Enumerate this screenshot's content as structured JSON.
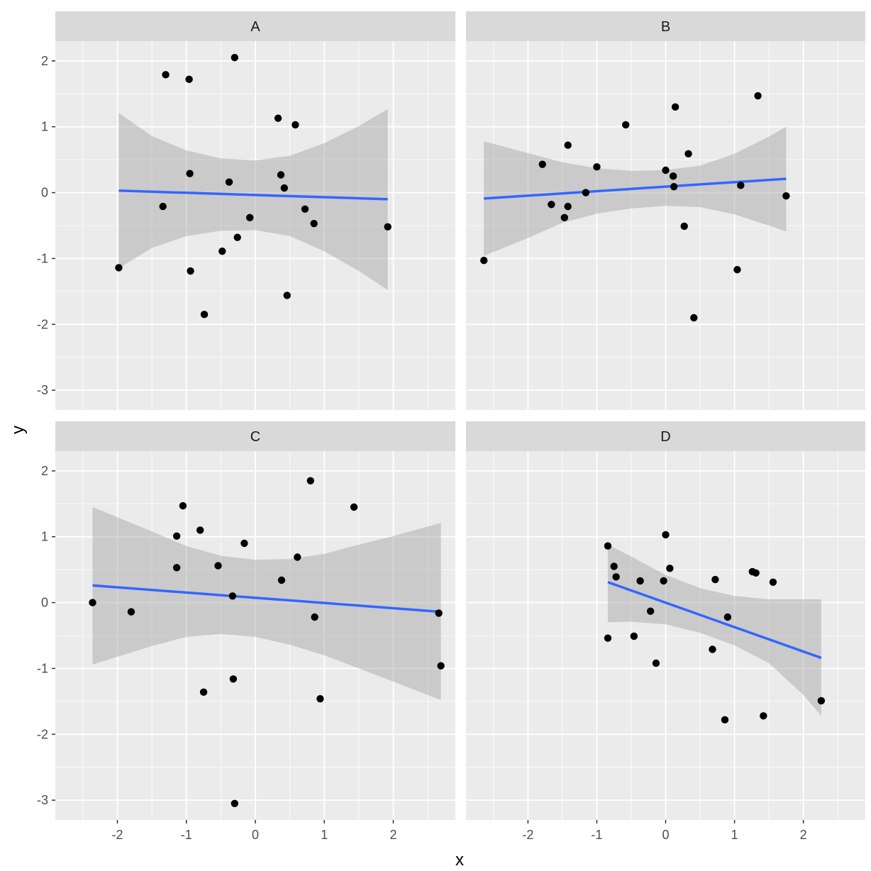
{
  "chart_data": {
    "type": "scatter",
    "xlabel": "x",
    "ylabel": "y",
    "xlim": [
      -2.9,
      2.9
    ],
    "ylim": [
      -3.3,
      2.3
    ],
    "x_ticks": [
      -2,
      -1,
      0,
      1,
      2
    ],
    "y_ticks": [
      -3,
      -2,
      -1,
      0,
      1,
      2
    ],
    "x_tick_labels": [
      "-2",
      "-1",
      "0",
      "1",
      "2"
    ],
    "y_tick_labels": [
      "-3",
      "-2",
      "-1",
      "0",
      "1",
      "2"
    ],
    "grid": true,
    "colors": {
      "panel_bg": "#ebebeb",
      "strip_bg": "#d9d9d9",
      "grid": "#ffffff",
      "point": "#000000",
      "fit_line": "#3366ff",
      "ribbon": "#999999"
    },
    "facets": [
      {
        "label": "A",
        "points": [
          [
            -1.98,
            -1.14
          ],
          [
            -1.3,
            1.79
          ],
          [
            -1.34,
            -0.21
          ],
          [
            -0.96,
            1.72
          ],
          [
            -0.95,
            0.29
          ],
          [
            -0.94,
            -1.19
          ],
          [
            -0.74,
            -1.85
          ],
          [
            -0.48,
            -0.89
          ],
          [
            -0.38,
            0.16
          ],
          [
            -0.3,
            2.05
          ],
          [
            -0.26,
            -0.68
          ],
          [
            -0.08,
            -0.38
          ],
          [
            0.33,
            1.13
          ],
          [
            0.37,
            0.27
          ],
          [
            0.42,
            0.07
          ],
          [
            0.46,
            -1.56
          ],
          [
            0.58,
            1.03
          ],
          [
            0.72,
            -0.25
          ],
          [
            0.85,
            -0.47
          ],
          [
            1.92,
            -0.52
          ]
        ],
        "fit": {
          "x": [
            -1.98,
            1.92
          ],
          "y": [
            0.03,
            -0.1
          ]
        },
        "ribbon": {
          "x": [
            -1.98,
            -1.5,
            -1.0,
            -0.5,
            0.0,
            0.5,
            1.0,
            1.5,
            1.92
          ],
          "upper": [
            1.21,
            0.86,
            0.64,
            0.52,
            0.49,
            0.56,
            0.75,
            1.01,
            1.27
          ],
          "lower": [
            -1.15,
            -0.84,
            -0.66,
            -0.58,
            -0.57,
            -0.66,
            -0.89,
            -1.19,
            -1.48
          ]
        }
      },
      {
        "label": "B",
        "points": [
          [
            -2.64,
            -1.03
          ],
          [
            -1.79,
            0.43
          ],
          [
            -1.66,
            -0.18
          ],
          [
            -1.42,
            0.72
          ],
          [
            -1.42,
            -0.21
          ],
          [
            -1.47,
            -0.38
          ],
          [
            -1.16,
            0.0
          ],
          [
            -1.0,
            0.39
          ],
          [
            -0.58,
            1.03
          ],
          [
            0.0,
            0.34
          ],
          [
            0.11,
            0.25
          ],
          [
            0.12,
            0.09
          ],
          [
            0.14,
            1.3
          ],
          [
            0.27,
            -0.51
          ],
          [
            0.33,
            0.59
          ],
          [
            0.41,
            -1.9
          ],
          [
            1.04,
            -1.17
          ],
          [
            1.09,
            0.11
          ],
          [
            1.34,
            1.47
          ],
          [
            1.75,
            -0.05
          ]
        ],
        "fit": {
          "x": [
            -2.64,
            1.75
          ],
          "y": [
            -0.09,
            0.21
          ]
        },
        "ribbon": {
          "x": [
            -2.64,
            -2.0,
            -1.5,
            -1.0,
            -0.5,
            0.0,
            0.5,
            1.0,
            1.5,
            1.75
          ],
          "upper": [
            0.78,
            0.6,
            0.46,
            0.37,
            0.33,
            0.34,
            0.41,
            0.59,
            0.85,
            1.0
          ],
          "lower": [
            -0.96,
            -0.69,
            -0.46,
            -0.32,
            -0.24,
            -0.2,
            -0.22,
            -0.33,
            -0.5,
            -0.59
          ]
        }
      },
      {
        "label": "C",
        "points": [
          [
            -2.36,
            0.0
          ],
          [
            -1.8,
            -0.14
          ],
          [
            -1.14,
            1.01
          ],
          [
            -1.14,
            0.53
          ],
          [
            -1.05,
            1.47
          ],
          [
            -0.8,
            1.1
          ],
          [
            -0.75,
            -1.36
          ],
          [
            -0.54,
            0.56
          ],
          [
            -0.33,
            0.1
          ],
          [
            -0.32,
            -1.16
          ],
          [
            -0.3,
            -3.05
          ],
          [
            -0.16,
            0.9
          ],
          [
            0.38,
            0.34
          ],
          [
            0.61,
            0.69
          ],
          [
            0.8,
            1.85
          ],
          [
            0.86,
            -0.22
          ],
          [
            0.94,
            -1.46
          ],
          [
            1.43,
            1.45
          ],
          [
            2.66,
            -0.16
          ],
          [
            2.69,
            -0.96
          ]
        ],
        "fit": {
          "x": [
            -2.36,
            2.69
          ],
          "y": [
            0.26,
            -0.14
          ]
        },
        "ribbon": {
          "x": [
            -2.36,
            -1.5,
            -1.0,
            -0.5,
            0.0,
            0.5,
            1.0,
            1.5,
            2.0,
            2.69
          ],
          "upper": [
            1.45,
            1.08,
            0.86,
            0.71,
            0.65,
            0.66,
            0.74,
            0.88,
            1.01,
            1.21
          ],
          "lower": [
            -0.94,
            -0.66,
            -0.52,
            -0.48,
            -0.52,
            -0.64,
            -0.8,
            -1.0,
            -1.2,
            -1.48
          ]
        }
      },
      {
        "label": "D",
        "points": [
          [
            -0.84,
            0.86
          ],
          [
            -0.84,
            -0.54
          ],
          [
            -0.75,
            0.55
          ],
          [
            -0.72,
            0.39
          ],
          [
            -0.46,
            -0.51
          ],
          [
            -0.37,
            0.33
          ],
          [
            -0.22,
            -0.13
          ],
          [
            -0.14,
            -0.92
          ],
          [
            -0.03,
            0.33
          ],
          [
            0.0,
            1.03
          ],
          [
            0.06,
            0.52
          ],
          [
            0.72,
            0.35
          ],
          [
            0.68,
            -0.71
          ],
          [
            0.86,
            -1.78
          ],
          [
            0.9,
            -0.22
          ],
          [
            1.26,
            0.47
          ],
          [
            1.31,
            0.45
          ],
          [
            1.42,
            -1.72
          ],
          [
            1.56,
            0.31
          ],
          [
            2.26,
            -1.49
          ]
        ],
        "fit": {
          "x": [
            -0.84,
            2.26
          ],
          "y": [
            0.31,
            -0.84
          ]
        },
        "ribbon": {
          "x": [
            -0.84,
            -0.5,
            0.0,
            0.5,
            1.0,
            1.5,
            2.0,
            2.26
          ],
          "upper": [
            0.88,
            0.7,
            0.42,
            0.22,
            0.1,
            0.05,
            0.05,
            0.05
          ],
          "lower": [
            -0.3,
            -0.29,
            -0.33,
            -0.46,
            -0.65,
            -0.92,
            -1.4,
            -1.72
          ]
        }
      }
    ]
  }
}
